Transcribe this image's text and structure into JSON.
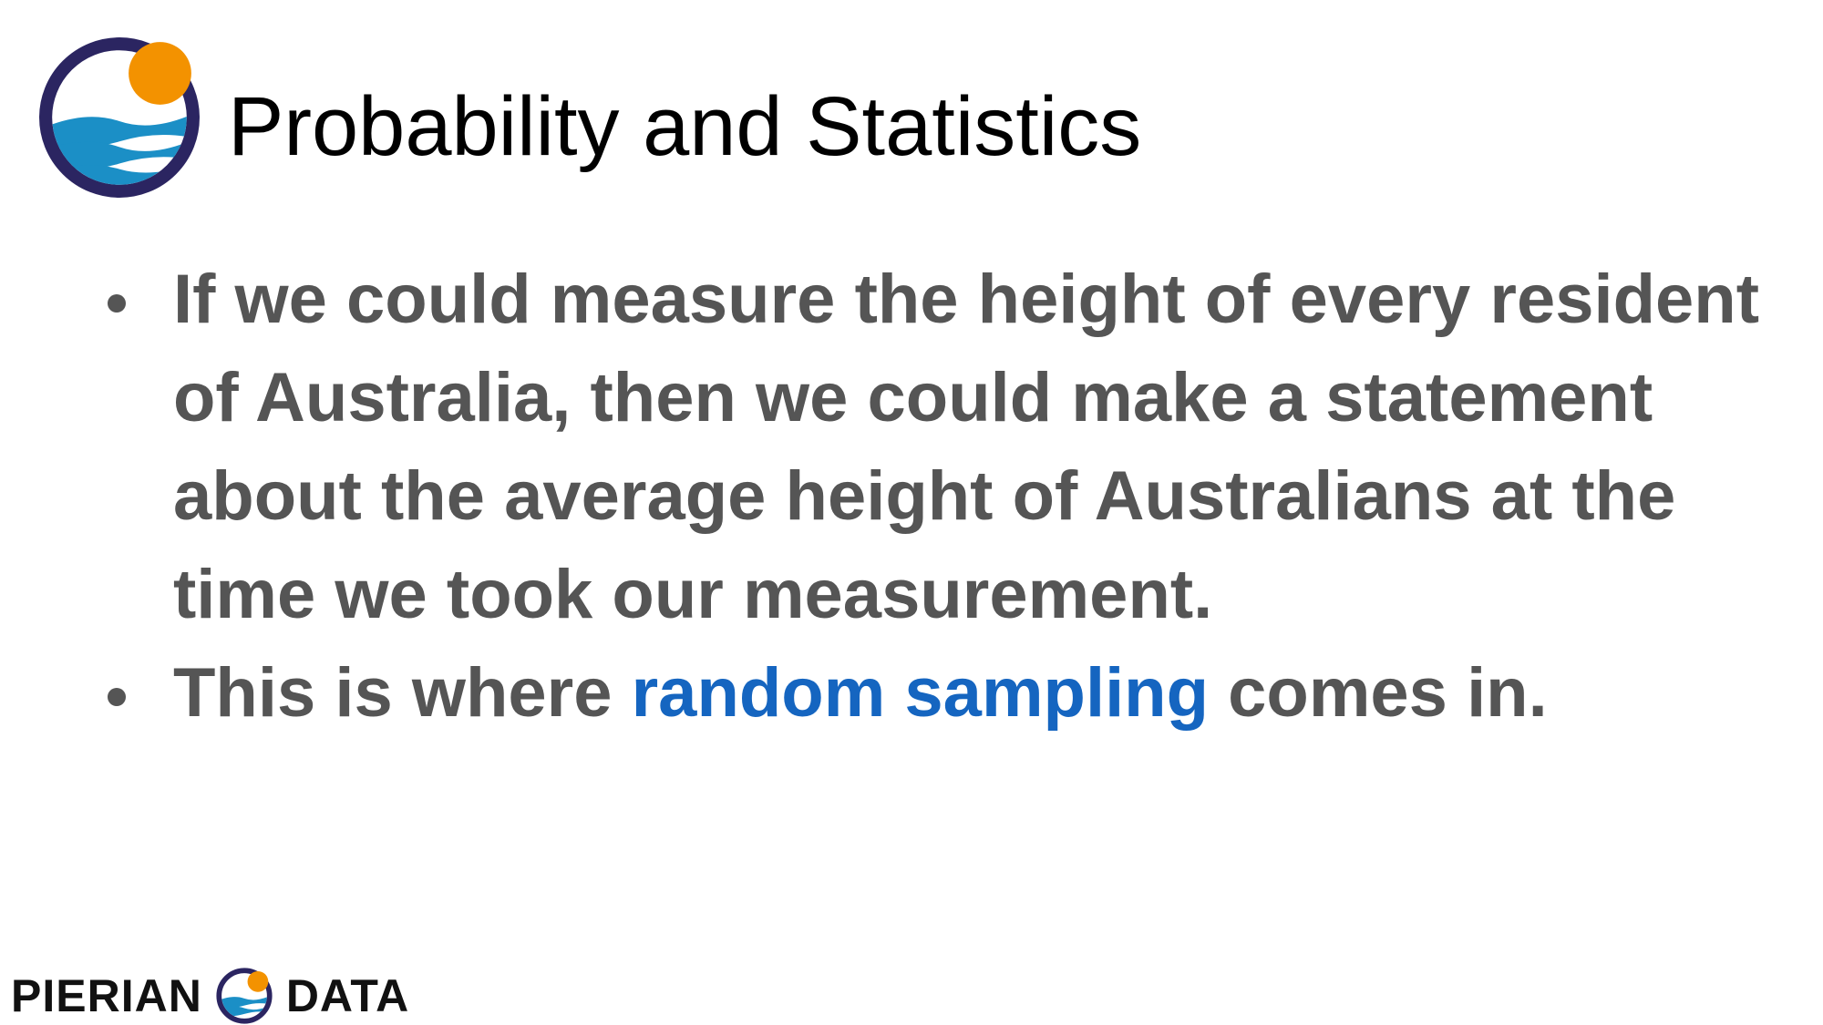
{
  "header": {
    "title": "Probability and Statistics",
    "logo_icon": "pierian-data-logo-icon"
  },
  "bullets": [
    {
      "text": "If we could measure the height of every resident of Australia, then we could make a statement about the average height of Australians at the time we took our measurement."
    },
    {
      "prefix": "This is where ",
      "highlight": "random sampling",
      "suffix": " comes in."
    }
  ],
  "footer": {
    "brand_left": "PIERIAN",
    "brand_right": "DATA",
    "brand_icon": "pierian-data-logo-icon"
  },
  "colors": {
    "title": "#000000",
    "body_text": "#555555",
    "highlight": "#1565c0",
    "logo_ring": "#2b2561",
    "logo_sun": "#f39200",
    "logo_wave": "#1b8fc6"
  }
}
